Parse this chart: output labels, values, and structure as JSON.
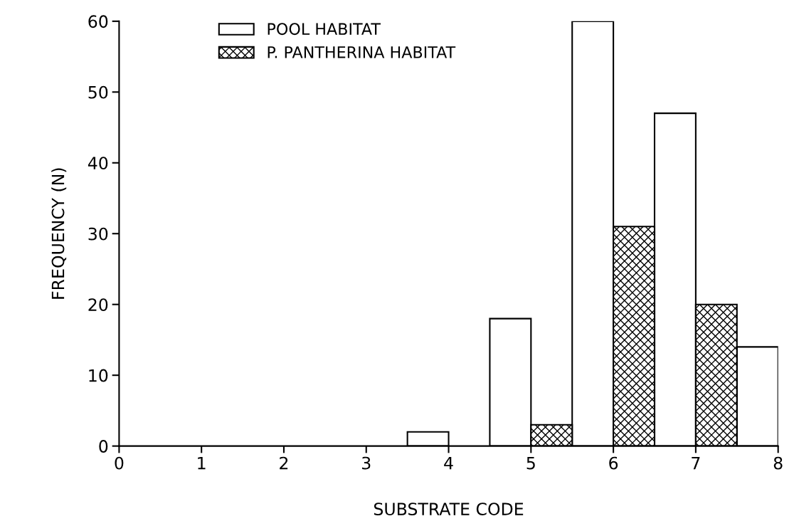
{
  "chart_data": {
    "type": "bar",
    "xlabel": "SUBSTRATE CODE",
    "ylabel": "FREQUENCY (N)",
    "series": [
      {
        "name": "POOL HABITAT",
        "color": "#ffffff",
        "x": [
          4,
          5,
          6,
          7,
          8
        ],
        "values": [
          2,
          18,
          60,
          47,
          14
        ]
      },
      {
        "name": "P. PANTHERINA HABITAT",
        "color": "#000000",
        "x": [
          5,
          6,
          7
        ],
        "values": [
          3,
          31,
          20
        ]
      }
    ],
    "xlim": [
      0,
      8
    ],
    "xticks": [
      0,
      1,
      2,
      3,
      4,
      5,
      6,
      7,
      8
    ],
    "ylim": [
      0,
      60
    ],
    "yticks": [
      0,
      10,
      20,
      30,
      40,
      50,
      60
    ],
    "grid": false,
    "legend": "top left"
  }
}
